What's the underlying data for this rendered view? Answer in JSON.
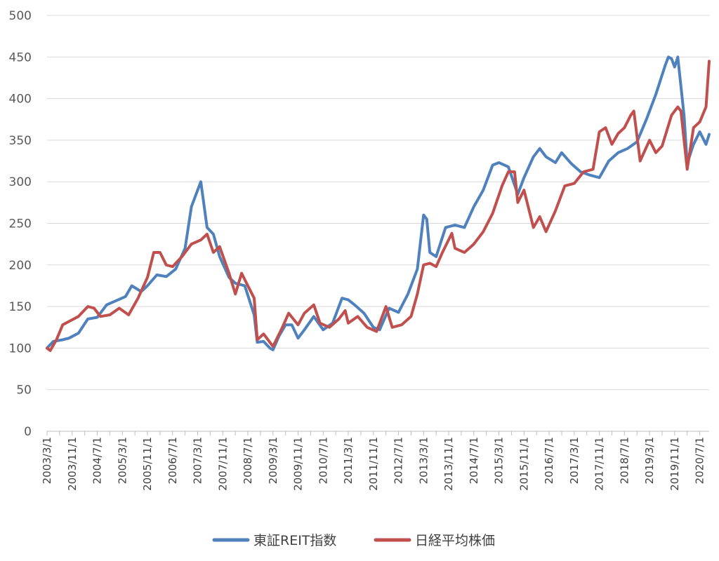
{
  "chart_data": {
    "type": "line",
    "title": "",
    "xlabel": "",
    "ylabel": "",
    "ylim": [
      0,
      500
    ],
    "yticks": [
      0,
      50,
      100,
      150,
      200,
      250,
      300,
      350,
      400,
      450,
      500
    ],
    "grid": "horizontal",
    "legend_position": "bottom",
    "x_tick_labels": [
      "2003/3/1",
      "2003/11/1",
      "2004/7/1",
      "2005/3/1",
      "2005/11/1",
      "2006/7/1",
      "2007/3/1",
      "2007/11/1",
      "2008/7/1",
      "2009/3/1",
      "2009/11/1",
      "2010/7/1",
      "2011/3/1",
      "2011/11/1",
      "2012/7/1",
      "2013/3/1",
      "2013/11/1",
      "2014/7/1",
      "2015/3/1",
      "2015/11/1",
      "2016/7/1",
      "2017/3/1",
      "2017/11/1",
      "2018/7/1",
      "2019/3/1",
      "2019/11/1",
      "2020/7/1"
    ],
    "x_start": "2003-03",
    "x_end": "2020-10",
    "series": [
      {
        "name": "東証REIT指数",
        "color": "#4f81bd",
        "points": [
          [
            "2003-03",
            100
          ],
          [
            "2003-05",
            108
          ],
          [
            "2003-08",
            110
          ],
          [
            "2003-10",
            112
          ],
          [
            "2004-01",
            118
          ],
          [
            "2004-04",
            135
          ],
          [
            "2004-07",
            137
          ],
          [
            "2004-10",
            152
          ],
          [
            "2005-01",
            157
          ],
          [
            "2005-04",
            162
          ],
          [
            "2005-06",
            175
          ],
          [
            "2005-09",
            168
          ],
          [
            "2005-11",
            175
          ],
          [
            "2006-02",
            188
          ],
          [
            "2006-05",
            186
          ],
          [
            "2006-08",
            195
          ],
          [
            "2006-11",
            220
          ],
          [
            "2007-01",
            270
          ],
          [
            "2007-03",
            290
          ],
          [
            "2007-04",
            300
          ],
          [
            "2007-06",
            245
          ],
          [
            "2007-08",
            237
          ],
          [
            "2007-10",
            210
          ],
          [
            "2008-01",
            185
          ],
          [
            "2008-03",
            178
          ],
          [
            "2008-06",
            175
          ],
          [
            "2008-09",
            140
          ],
          [
            "2008-10",
            107
          ],
          [
            "2008-12",
            108
          ],
          [
            "2009-02",
            100
          ],
          [
            "2009-03",
            98
          ],
          [
            "2009-05",
            115
          ],
          [
            "2009-07",
            128
          ],
          [
            "2009-09",
            128
          ],
          [
            "2009-11",
            112
          ],
          [
            "2010-01",
            122
          ],
          [
            "2010-04",
            138
          ],
          [
            "2010-07",
            122
          ],
          [
            "2010-10",
            130
          ],
          [
            "2011-01",
            160
          ],
          [
            "2011-03",
            158
          ],
          [
            "2011-05",
            152
          ],
          [
            "2011-08",
            142
          ],
          [
            "2011-11",
            125
          ],
          [
            "2012-01",
            122
          ],
          [
            "2012-04",
            148
          ],
          [
            "2012-07",
            143
          ],
          [
            "2012-10",
            165
          ],
          [
            "2013-01",
            195
          ],
          [
            "2013-03",
            260
          ],
          [
            "2013-04",
            255
          ],
          [
            "2013-05",
            215
          ],
          [
            "2013-07",
            210
          ],
          [
            "2013-10",
            245
          ],
          [
            "2014-01",
            248
          ],
          [
            "2014-04",
            245
          ],
          [
            "2014-07",
            270
          ],
          [
            "2014-10",
            290
          ],
          [
            "2015-01",
            320
          ],
          [
            "2015-03",
            323
          ],
          [
            "2015-06",
            318
          ],
          [
            "2015-09",
            285
          ],
          [
            "2015-11",
            305
          ],
          [
            "2016-02",
            330
          ],
          [
            "2016-04",
            340
          ],
          [
            "2016-06",
            330
          ],
          [
            "2016-09",
            323
          ],
          [
            "2016-11",
            335
          ],
          [
            "2017-02",
            322
          ],
          [
            "2017-05",
            312
          ],
          [
            "2017-08",
            308
          ],
          [
            "2017-11",
            305
          ],
          [
            "2018-02",
            325
          ],
          [
            "2018-05",
            335
          ],
          [
            "2018-08",
            340
          ],
          [
            "2018-11",
            348
          ],
          [
            "2019-02",
            375
          ],
          [
            "2019-05",
            405
          ],
          [
            "2019-08",
            440
          ],
          [
            "2019-09",
            450
          ],
          [
            "2019-10",
            448
          ],
          [
            "2019-11",
            438
          ],
          [
            "2019-12",
            450
          ],
          [
            "2020-02",
            380
          ],
          [
            "2020-03",
            322
          ],
          [
            "2020-05",
            345
          ],
          [
            "2020-07",
            360
          ],
          [
            "2020-09",
            345
          ],
          [
            "2020-10",
            357
          ]
        ]
      },
      {
        "name": "日経平均株価",
        "color": "#c0504d",
        "points": [
          [
            "2003-03",
            100
          ],
          [
            "2003-04",
            97
          ],
          [
            "2003-06",
            110
          ],
          [
            "2003-08",
            128
          ],
          [
            "2003-10",
            132
          ],
          [
            "2004-01",
            138
          ],
          [
            "2004-04",
            150
          ],
          [
            "2004-06",
            148
          ],
          [
            "2004-08",
            138
          ],
          [
            "2004-11",
            140
          ],
          [
            "2005-02",
            148
          ],
          [
            "2005-05",
            140
          ],
          [
            "2005-08",
            160
          ],
          [
            "2005-11",
            185
          ],
          [
            "2006-01",
            215
          ],
          [
            "2006-03",
            215
          ],
          [
            "2006-05",
            200
          ],
          [
            "2006-07",
            198
          ],
          [
            "2006-10",
            210
          ],
          [
            "2007-01",
            225
          ],
          [
            "2007-04",
            230
          ],
          [
            "2007-06",
            237
          ],
          [
            "2007-08",
            215
          ],
          [
            "2007-10",
            222
          ],
          [
            "2008-01",
            190
          ],
          [
            "2008-03",
            165
          ],
          [
            "2008-05",
            190
          ],
          [
            "2008-07",
            175
          ],
          [
            "2008-09",
            160
          ],
          [
            "2008-10",
            110
          ],
          [
            "2008-12",
            117
          ],
          [
            "2009-03",
            102
          ],
          [
            "2009-06",
            125
          ],
          [
            "2009-08",
            142
          ],
          [
            "2009-11",
            128
          ],
          [
            "2010-01",
            142
          ],
          [
            "2010-04",
            152
          ],
          [
            "2010-06",
            130
          ],
          [
            "2010-09",
            125
          ],
          [
            "2010-12",
            135
          ],
          [
            "2011-02",
            145
          ],
          [
            "2011-03",
            130
          ],
          [
            "2011-06",
            138
          ],
          [
            "2011-09",
            125
          ],
          [
            "2011-12",
            120
          ],
          [
            "2012-03",
            150
          ],
          [
            "2012-05",
            125
          ],
          [
            "2012-08",
            128
          ],
          [
            "2012-11",
            138
          ],
          [
            "2013-01",
            165
          ],
          [
            "2013-03",
            200
          ],
          [
            "2013-05",
            202
          ],
          [
            "2013-07",
            198
          ],
          [
            "2013-09",
            215
          ],
          [
            "2013-12,",
            238
          ],
          [
            "2014-01",
            220
          ],
          [
            "2014-04",
            215
          ],
          [
            "2014-07",
            225
          ],
          [
            "2014-10",
            240
          ],
          [
            "2015-01",
            262
          ],
          [
            "2015-04",
            295
          ],
          [
            "2015-06",
            312
          ],
          [
            "2015-08",
            312
          ],
          [
            "2015-09",
            275
          ],
          [
            "2015-11",
            290
          ],
          [
            "2016-02",
            245
          ],
          [
            "2016-04",
            258
          ],
          [
            "2016-06",
            240
          ],
          [
            "2016-09",
            265
          ],
          [
            "2016-12",
            295
          ],
          [
            "2017-03",
            298
          ],
          [
            "2017-06",
            312
          ],
          [
            "2017-09",
            315
          ],
          [
            "2017-11",
            360
          ],
          [
            "2018-01",
            365
          ],
          [
            "2018-03",
            345
          ],
          [
            "2018-05",
            358
          ],
          [
            "2018-07",
            365
          ],
          [
            "2018-09",
            380
          ],
          [
            "2018-10",
            385
          ],
          [
            "2018-12",
            325
          ],
          [
            "2019-03",
            350
          ],
          [
            "2019-05",
            335
          ],
          [
            "2019-07",
            343
          ],
          [
            "2019-10",
            380
          ],
          [
            "2019-12",
            390
          ],
          [
            "2020-01",
            385
          ],
          [
            "2020-03",
            315
          ],
          [
            "2020-05",
            365
          ],
          [
            "2020-07",
            372
          ],
          [
            "2020-09",
            390
          ],
          [
            "2020-10",
            445
          ]
        ]
      }
    ]
  }
}
